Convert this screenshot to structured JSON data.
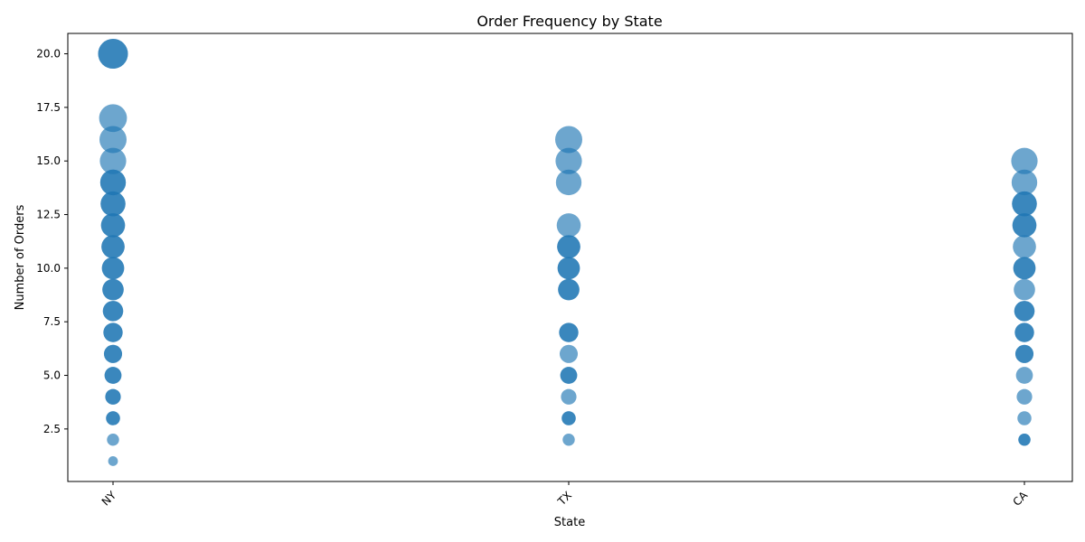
{
  "chart_data": {
    "type": "scatter",
    "title": "Order Frequency by State",
    "xlabel": "State",
    "ylabel": "Number of Orders",
    "categories": [
      "NY",
      "TX",
      "CA"
    ],
    "ylim": [
      0.05,
      20.95
    ],
    "yticks": [
      2.5,
      5.0,
      7.5,
      10.0,
      12.5,
      15.0,
      17.5,
      20.0
    ],
    "ytick_labels": [
      "2.5",
      "5.0",
      "7.5",
      "10.0",
      "12.5",
      "15.0",
      "17.5",
      "20.0"
    ],
    "grid": false,
    "marker_color": "#1f77b4",
    "marker_alpha": 0.65,
    "points": [
      {
        "x": "NY",
        "y": 1
      },
      {
        "x": "NY",
        "y": 2
      },
      {
        "x": "NY",
        "y": 3
      },
      {
        "x": "NY",
        "y": 3
      },
      {
        "x": "NY",
        "y": 4
      },
      {
        "x": "NY",
        "y": 4
      },
      {
        "x": "NY",
        "y": 5
      },
      {
        "x": "NY",
        "y": 5
      },
      {
        "x": "NY",
        "y": 6
      },
      {
        "x": "NY",
        "y": 6
      },
      {
        "x": "NY",
        "y": 7
      },
      {
        "x": "NY",
        "y": 7
      },
      {
        "x": "NY",
        "y": 8
      },
      {
        "x": "NY",
        "y": 8
      },
      {
        "x": "NY",
        "y": 9
      },
      {
        "x": "NY",
        "y": 9
      },
      {
        "x": "NY",
        "y": 10
      },
      {
        "x": "NY",
        "y": 10
      },
      {
        "x": "NY",
        "y": 11
      },
      {
        "x": "NY",
        "y": 11
      },
      {
        "x": "NY",
        "y": 12
      },
      {
        "x": "NY",
        "y": 12
      },
      {
        "x": "NY",
        "y": 13
      },
      {
        "x": "NY",
        "y": 13
      },
      {
        "x": "NY",
        "y": 14
      },
      {
        "x": "NY",
        "y": 14
      },
      {
        "x": "NY",
        "y": 15
      },
      {
        "x": "NY",
        "y": 16
      },
      {
        "x": "NY",
        "y": 17
      },
      {
        "x": "NY",
        "y": 20
      },
      {
        "x": "NY",
        "y": 20
      },
      {
        "x": "TX",
        "y": 2
      },
      {
        "x": "TX",
        "y": 3
      },
      {
        "x": "TX",
        "y": 3
      },
      {
        "x": "TX",
        "y": 4
      },
      {
        "x": "TX",
        "y": 5
      },
      {
        "x": "TX",
        "y": 5
      },
      {
        "x": "TX",
        "y": 6
      },
      {
        "x": "TX",
        "y": 7
      },
      {
        "x": "TX",
        "y": 7
      },
      {
        "x": "TX",
        "y": 9
      },
      {
        "x": "TX",
        "y": 9
      },
      {
        "x": "TX",
        "y": 10
      },
      {
        "x": "TX",
        "y": 10
      },
      {
        "x": "TX",
        "y": 11
      },
      {
        "x": "TX",
        "y": 11
      },
      {
        "x": "TX",
        "y": 12
      },
      {
        "x": "TX",
        "y": 14
      },
      {
        "x": "TX",
        "y": 15
      },
      {
        "x": "TX",
        "y": 16
      },
      {
        "x": "CA",
        "y": 2
      },
      {
        "x": "CA",
        "y": 2
      },
      {
        "x": "CA",
        "y": 3
      },
      {
        "x": "CA",
        "y": 4
      },
      {
        "x": "CA",
        "y": 5
      },
      {
        "x": "CA",
        "y": 6
      },
      {
        "x": "CA",
        "y": 6
      },
      {
        "x": "CA",
        "y": 7
      },
      {
        "x": "CA",
        "y": 7
      },
      {
        "x": "CA",
        "y": 8
      },
      {
        "x": "CA",
        "y": 8
      },
      {
        "x": "CA",
        "y": 9
      },
      {
        "x": "CA",
        "y": 10
      },
      {
        "x": "CA",
        "y": 10
      },
      {
        "x": "CA",
        "y": 11
      },
      {
        "x": "CA",
        "y": 12
      },
      {
        "x": "CA",
        "y": 12
      },
      {
        "x": "CA",
        "y": 13
      },
      {
        "x": "CA",
        "y": 13
      },
      {
        "x": "CA",
        "y": 14
      },
      {
        "x": "CA",
        "y": 15
      }
    ]
  }
}
